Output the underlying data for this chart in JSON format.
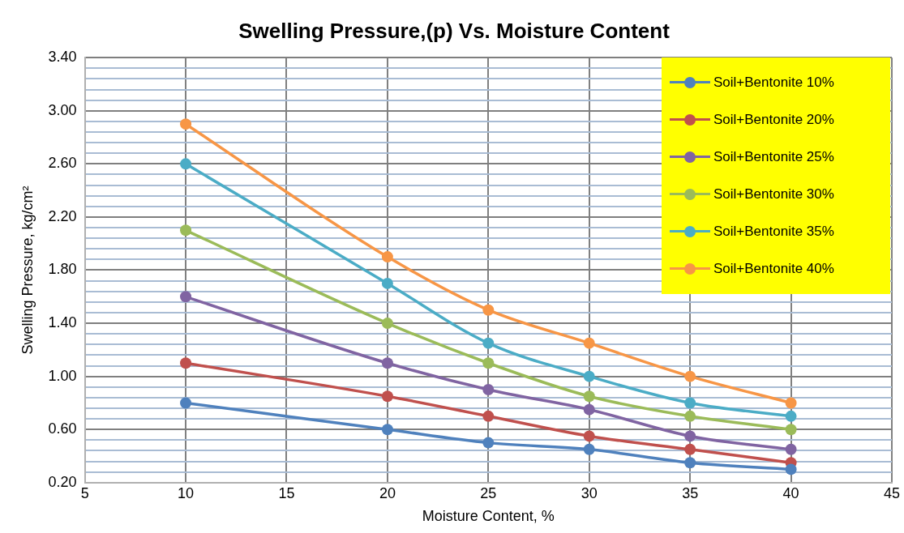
{
  "chart_data": {
    "type": "line",
    "title": "Swelling Pressure,(p) Vs. Moisture Content",
    "xlabel": "Moisture Content, %",
    "ylabel": "Swelling Pressure, kg/cm²",
    "x": [
      10,
      20,
      25,
      30,
      35,
      40
    ],
    "series": [
      {
        "name": "Soil+Bentonite 10%",
        "color": "#4f81bd",
        "values": [
          0.8,
          0.6,
          0.5,
          0.45,
          0.35,
          0.3
        ]
      },
      {
        "name": "Soil+Bentonite 20%",
        "color": "#c0504d",
        "values": [
          1.1,
          0.85,
          0.7,
          0.55,
          0.45,
          0.35
        ]
      },
      {
        "name": "Soil+Bentonite 25%",
        "color": "#8064a2",
        "values": [
          1.6,
          1.1,
          0.9,
          0.75,
          0.55,
          0.45
        ]
      },
      {
        "name": "Soil+Bentonite 30%",
        "color": "#9bbb59",
        "values": [
          2.1,
          1.4,
          1.1,
          0.85,
          0.7,
          0.6
        ]
      },
      {
        "name": "Soil+Bentonite 35%",
        "color": "#4bacc6",
        "values": [
          2.6,
          1.7,
          1.25,
          1.0,
          0.8,
          0.7
        ]
      },
      {
        "name": "Soil+Bentonite 40%",
        "color": "#f79646",
        "values": [
          2.9,
          1.9,
          1.5,
          1.25,
          1.0,
          0.8
        ]
      }
    ],
    "xlim": [
      5,
      45
    ],
    "xticks": [
      5,
      10,
      15,
      20,
      25,
      30,
      35,
      40,
      45
    ],
    "ylim": [
      0.2,
      3.4
    ],
    "yticks": [
      {
        "value": 0.2,
        "label": "0.20"
      },
      {
        "value": 0.28,
        "label": null
      },
      {
        "value": 0.36,
        "label": null
      },
      {
        "value": 0.44,
        "label": null
      },
      {
        "value": 0.52,
        "label": null
      },
      {
        "value": 0.6,
        "label": "0.60"
      },
      {
        "value": 0.68,
        "label": null
      },
      {
        "value": 0.76,
        "label": null
      },
      {
        "value": 0.84,
        "label": null
      },
      {
        "value": 0.92,
        "label": null
      },
      {
        "value": 1.0,
        "label": "1.00"
      },
      {
        "value": 1.08,
        "label": null
      },
      {
        "value": 1.16,
        "label": null
      },
      {
        "value": 1.24,
        "label": null
      },
      {
        "value": 1.32,
        "label": null
      },
      {
        "value": 1.4,
        "label": "1.40"
      },
      {
        "value": 1.48,
        "label": null
      },
      {
        "value": 1.56,
        "label": null
      },
      {
        "value": 1.64,
        "label": null
      },
      {
        "value": 1.72,
        "label": null
      },
      {
        "value": 1.8,
        "label": "1.80"
      },
      {
        "value": 1.88,
        "label": null
      },
      {
        "value": 1.96,
        "label": null
      },
      {
        "value": 2.04,
        "label": null
      },
      {
        "value": 2.12,
        "label": null
      },
      {
        "value": 2.2,
        "label": "2.20"
      },
      {
        "value": 2.28,
        "label": null
      },
      {
        "value": 2.36,
        "label": null
      },
      {
        "value": 2.44,
        "label": null
      },
      {
        "value": 2.52,
        "label": null
      },
      {
        "value": 2.6,
        "label": "2.60"
      },
      {
        "value": 2.68,
        "label": null
      },
      {
        "value": 2.76,
        "label": null
      },
      {
        "value": 2.84,
        "label": null
      },
      {
        "value": 2.92,
        "label": null
      },
      {
        "value": 3.0,
        "label": "3.00"
      },
      {
        "value": 3.08,
        "label": null
      },
      {
        "value": 3.16,
        "label": null
      },
      {
        "value": 3.24,
        "label": null
      },
      {
        "value": 3.32,
        "label": null
      },
      {
        "value": 3.4,
        "label": "3.40"
      }
    ],
    "grid": true,
    "legend": "top right",
    "marker": "circle",
    "line_style": "solid"
  }
}
